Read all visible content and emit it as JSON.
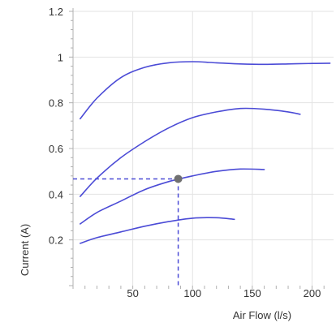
{
  "chart_data": {
    "type": "line",
    "title": "",
    "xlabel": "Air Flow (l/s)",
    "ylabel": "Current (A)",
    "xlim": [
      0,
      218
    ],
    "ylim": [
      0,
      1.2
    ],
    "x_ticks": [
      50,
      100,
      150,
      200
    ],
    "y_ticks": [
      0.2,
      0.4,
      0.6,
      0.8,
      1,
      1.2
    ],
    "y_tick_labels": [
      "0.2",
      "0.4",
      "0.6",
      "0.8",
      "1",
      "1.2"
    ],
    "grid": true,
    "colors": {
      "series": "#4b4bd6",
      "grid": "#e3e3e3",
      "axis": "#b0b0b0",
      "marker": "#707070"
    },
    "series": [
      {
        "x": [
          6,
          20,
          40,
          60,
          80,
          100,
          120,
          140,
          160,
          180,
          200,
          215
        ],
        "y": [
          0.73,
          0.82,
          0.91,
          0.955,
          0.975,
          0.98,
          0.975,
          0.97,
          0.968,
          0.97,
          0.972,
          0.973
        ]
      },
      {
        "x": [
          6,
          20,
          40,
          60,
          80,
          100,
          120,
          140,
          160,
          180,
          190
        ],
        "y": [
          0.39,
          0.47,
          0.56,
          0.63,
          0.69,
          0.735,
          0.76,
          0.775,
          0.772,
          0.76,
          0.75
        ]
      },
      {
        "x": [
          6,
          20,
          40,
          60,
          80,
          100,
          120,
          140,
          160
        ],
        "y": [
          0.27,
          0.32,
          0.37,
          0.42,
          0.455,
          0.48,
          0.5,
          0.51,
          0.508
        ]
      },
      {
        "x": [
          6,
          20,
          40,
          60,
          80,
          100,
          120,
          135
        ],
        "y": [
          0.185,
          0.21,
          0.235,
          0.26,
          0.28,
          0.295,
          0.297,
          0.29
        ]
      }
    ],
    "marker": {
      "x": 88,
      "y": 0.467
    }
  }
}
